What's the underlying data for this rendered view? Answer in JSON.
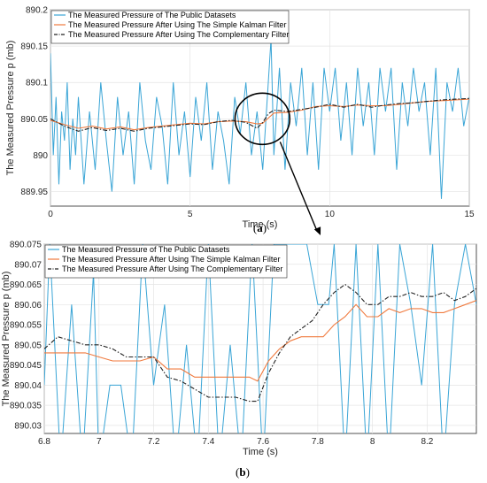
{
  "colors": {
    "raw": "#3aa5d6",
    "kalman": "#f07a3e",
    "complementary": "#222222",
    "grid": "#e4e4e4",
    "axis": "#262626"
  },
  "chart_data": [
    {
      "panel": "a",
      "type": "line",
      "caption": "(a)",
      "xlabel": "Time (s)",
      "ylabel": "The Measured Pressure p (mb)",
      "xlim": [
        0,
        15
      ],
      "ylim": [
        889.93,
        890.2
      ],
      "xticks": [
        0,
        5,
        10,
        15
      ],
      "xtick_labels": [
        "0",
        "5",
        "10",
        "15"
      ],
      "yticks": [
        889.95,
        890,
        890.05,
        890.1,
        890.15,
        890.2
      ],
      "ytick_labels": [
        "889.95",
        "890",
        "890.05",
        "890.1",
        "890.15",
        "890.2"
      ],
      "grid": true,
      "legend": "top-left",
      "series": [
        {
          "name": "The Measured Pressure of The Public Datasets",
          "style": "solid",
          "x": [
            0,
            0.1,
            0.2,
            0.3,
            0.4,
            0.5,
            0.6,
            0.7,
            0.8,
            0.9,
            1.0,
            1.2,
            1.4,
            1.6,
            1.8,
            2.0,
            2.2,
            2.4,
            2.6,
            2.8,
            3.0,
            3.2,
            3.4,
            3.6,
            3.8,
            4.0,
            4.2,
            4.4,
            4.6,
            4.8,
            5.0,
            5.2,
            5.4,
            5.6,
            5.8,
            6.0,
            6.2,
            6.4,
            6.6,
            6.8,
            7.0,
            7.2,
            7.4,
            7.6,
            7.8,
            7.9,
            8.0,
            8.2,
            8.4,
            8.6,
            8.8,
            9.0,
            9.2,
            9.4,
            9.6,
            9.8,
            10.0,
            10.2,
            10.4,
            10.6,
            10.8,
            11.0,
            11.2,
            11.4,
            11.6,
            11.8,
            12.0,
            12.2,
            12.4,
            12.6,
            12.8,
            13.0,
            13.2,
            13.4,
            13.6,
            13.8,
            14.0,
            14.2,
            14.4,
            14.6,
            14.8,
            15.0
          ],
          "values": [
            890.14,
            890.0,
            890.08,
            889.96,
            890.06,
            890.02,
            890.1,
            889.98,
            890.05,
            890.0,
            890.08,
            889.96,
            890.06,
            889.98,
            890.1,
            890.02,
            889.95,
            890.08,
            890.0,
            890.06,
            889.96,
            890.1,
            890.02,
            889.98,
            890.08,
            890.04,
            889.96,
            890.1,
            890.0,
            890.06,
            889.97,
            890.08,
            890.02,
            890.1,
            889.98,
            890.06,
            890.02,
            889.96,
            890.08,
            890.03,
            890.1,
            890.0,
            890.06,
            889.98,
            890.1,
            890.16,
            890.0,
            890.12,
            889.98,
            890.1,
            890.04,
            890.12,
            890.0,
            890.1,
            889.98,
            890.12,
            890.06,
            890.12,
            890.02,
            890.1,
            890.0,
            890.12,
            890.04,
            890.1,
            890.0,
            890.12,
            890.06,
            890.12,
            889.98,
            890.1,
            890.04,
            890.12,
            890.06,
            890.1,
            890.0,
            890.12,
            889.94,
            890.1,
            890.06,
            890.12,
            890.04,
            890.08
          ]
        },
        {
          "name": "The Measured Pressure After Using The Simple Kalman Filter",
          "style": "solid",
          "x": [
            0,
            0.5,
            1.0,
            1.5,
            2.0,
            2.5,
            3.0,
            3.5,
            4.0,
            4.5,
            5.0,
            5.5,
            6.0,
            6.5,
            7.0,
            7.4,
            7.6,
            7.8,
            8.0,
            8.5,
            9.0,
            9.5,
            10.0,
            10.5,
            11.0,
            11.5,
            12.0,
            12.5,
            13.0,
            13.5,
            14.0,
            14.5,
            15.0
          ],
          "values": [
            890.048,
            890.042,
            890.037,
            890.04,
            890.036,
            890.039,
            890.035,
            890.038,
            890.04,
            890.042,
            890.044,
            890.043,
            890.046,
            890.047,
            890.046,
            890.043,
            890.044,
            890.051,
            890.058,
            890.059,
            890.062,
            890.067,
            890.068,
            890.067,
            890.069,
            890.068,
            890.068,
            890.07,
            890.072,
            890.074,
            890.075,
            890.076,
            890.077
          ]
        },
        {
          "name": "The Measured Pressure After Using The Complementary Filter",
          "style": "dashdot",
          "x": [
            0,
            0.5,
            1.0,
            1.5,
            2.0,
            2.5,
            3.0,
            3.5,
            4.0,
            4.5,
            5.0,
            5.5,
            6.0,
            6.5,
            7.0,
            7.4,
            7.6,
            7.8,
            8.0,
            8.5,
            9.0,
            9.5,
            10.0,
            10.5,
            11.0,
            11.5,
            12.0,
            12.5,
            13.0,
            13.5,
            14.0,
            14.5,
            15.0
          ],
          "values": [
            890.05,
            890.04,
            890.033,
            890.038,
            890.034,
            890.037,
            890.033,
            890.037,
            890.039,
            890.041,
            890.043,
            890.042,
            890.046,
            890.048,
            890.045,
            890.037,
            890.045,
            890.057,
            890.062,
            890.06,
            890.063,
            890.066,
            890.07,
            890.066,
            890.07,
            890.066,
            890.069,
            890.071,
            890.072,
            890.074,
            890.076,
            890.077,
            890.078
          ]
        }
      ]
    },
    {
      "panel": "b",
      "type": "line",
      "caption": "(b)",
      "xlabel": "Time (s)",
      "ylabel": "The Measured Pressure p (mb)",
      "xlim": [
        6.8,
        8.38
      ],
      "ylim": [
        890.028,
        890.075
      ],
      "xticks": [
        6.8,
        7.0,
        7.2,
        7.4,
        7.6,
        7.8,
        8.0,
        8.2
      ],
      "xtick_labels": [
        "6.8",
        "7",
        "7.2",
        "7.4",
        "7.6",
        "7.8",
        "8",
        "8.2"
      ],
      "yticks": [
        890.03,
        890.035,
        890.04,
        890.045,
        890.05,
        890.055,
        890.06,
        890.065,
        890.07,
        890.075
      ],
      "ytick_labels": [
        "890.03",
        "890.035",
        "890.04",
        "890.045",
        "890.05",
        "890.055",
        "890.06",
        "890.065",
        "890.07",
        "890.075"
      ],
      "grid": true,
      "legend": "top-left",
      "series": [
        {
          "name": "The Measured Pressure of The Public Datasets",
          "style": "solid",
          "x": [
            6.8,
            6.82,
            6.86,
            6.9,
            6.94,
            6.98,
            7.0,
            7.04,
            7.08,
            7.12,
            7.16,
            7.2,
            7.24,
            7.28,
            7.32,
            7.36,
            7.4,
            7.44,
            7.48,
            7.52,
            7.56,
            7.6,
            7.64,
            7.68,
            7.72,
            7.76,
            7.8,
            7.84,
            7.86,
            7.9,
            7.94,
            7.98,
            8.02,
            8.06,
            8.1,
            8.14,
            8.18,
            8.22,
            8.26,
            8.3,
            8.34,
            8.38
          ],
          "values": [
            890.04,
            890.075,
            890.02,
            890.06,
            890.02,
            890.068,
            890.02,
            890.04,
            890.04,
            890.02,
            890.075,
            890.04,
            890.06,
            890.02,
            890.05,
            890.02,
            890.075,
            890.02,
            890.05,
            890.02,
            890.075,
            890.02,
            890.075,
            890.075,
            890.075,
            890.075,
            890.06,
            890.06,
            890.075,
            890.02,
            890.075,
            890.02,
            890.075,
            890.02,
            890.075,
            890.06,
            890.04,
            890.075,
            890.02,
            890.06,
            890.075,
            890.06
          ]
        },
        {
          "name": "The Measured Pressure After Using The Simple Kalman Filter",
          "style": "solid",
          "x": [
            6.8,
            6.85,
            6.9,
            6.95,
            7.0,
            7.05,
            7.1,
            7.15,
            7.2,
            7.25,
            7.3,
            7.35,
            7.4,
            7.45,
            7.5,
            7.55,
            7.58,
            7.62,
            7.66,
            7.7,
            7.74,
            7.78,
            7.82,
            7.86,
            7.9,
            7.94,
            7.98,
            8.02,
            8.06,
            8.1,
            8.14,
            8.18,
            8.22,
            8.26,
            8.3,
            8.34,
            8.38
          ],
          "values": [
            890.048,
            890.048,
            890.048,
            890.048,
            890.047,
            890.046,
            890.046,
            890.046,
            890.047,
            890.044,
            890.044,
            890.042,
            890.042,
            890.042,
            890.042,
            890.042,
            890.041,
            890.046,
            890.049,
            890.051,
            890.052,
            890.052,
            890.052,
            890.055,
            890.057,
            890.06,
            890.057,
            890.057,
            890.059,
            890.058,
            890.059,
            890.059,
            890.058,
            890.058,
            890.059,
            890.06,
            890.061
          ]
        },
        {
          "name": "The Measured Pressure After Using The Complementary Filter",
          "style": "dashdot",
          "x": [
            6.8,
            6.85,
            6.9,
            6.95,
            7.0,
            7.05,
            7.1,
            7.15,
            7.2,
            7.25,
            7.3,
            7.35,
            7.4,
            7.45,
            7.5,
            7.55,
            7.58,
            7.62,
            7.66,
            7.7,
            7.74,
            7.78,
            7.82,
            7.86,
            7.9,
            7.94,
            7.98,
            8.02,
            8.06,
            8.1,
            8.14,
            8.18,
            8.22,
            8.26,
            8.3,
            8.34,
            8.38
          ],
          "values": [
            890.049,
            890.052,
            890.051,
            890.05,
            890.05,
            890.049,
            890.047,
            890.047,
            890.047,
            890.042,
            890.041,
            890.039,
            890.037,
            890.037,
            890.037,
            890.036,
            890.036,
            890.043,
            890.048,
            890.052,
            890.054,
            890.056,
            890.06,
            890.063,
            890.065,
            890.063,
            890.06,
            890.06,
            890.062,
            890.062,
            890.063,
            890.062,
            890.062,
            890.063,
            890.061,
            890.062,
            890.064
          ]
        }
      ]
    }
  ]
}
